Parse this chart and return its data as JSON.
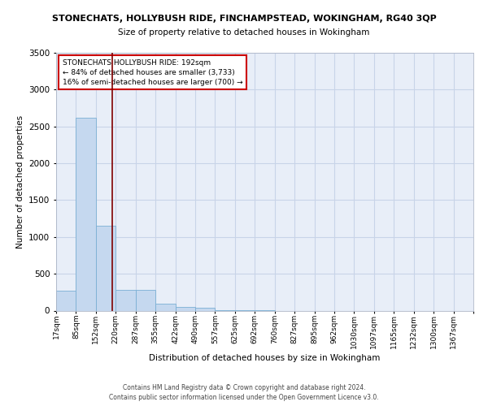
{
  "title1": "STONECHATS, HOLLYBUSH RIDE, FINCHAMPSTEAD, WOKINGHAM, RG40 3QP",
  "title2": "Size of property relative to detached houses in Wokingham",
  "xlabel": "Distribution of detached houses by size in Wokingham",
  "ylabel": "Number of detached properties",
  "bin_labels": [
    "17sqm",
    "85sqm",
    "152sqm",
    "220sqm",
    "287sqm",
    "355sqm",
    "422sqm",
    "490sqm",
    "557sqm",
    "625sqm",
    "692sqm",
    "760sqm",
    "827sqm",
    "895sqm",
    "962sqm",
    "1030sqm",
    "1097sqm",
    "1165sqm",
    "1232sqm",
    "1300sqm",
    "1367sqm"
  ],
  "bar_heights": [
    270,
    2620,
    1150,
    280,
    280,
    95,
    55,
    35,
    5,
    2,
    1,
    0,
    0,
    0,
    0,
    0,
    0,
    0,
    0,
    0,
    0
  ],
  "bar_color": "#c5d8ef",
  "bar_edge_color": "#7aafd4",
  "grid_color": "#c8d4e8",
  "background_color": "#e8eef8",
  "red_line_x": 2.33,
  "annotation_title": "STONECHATS HOLLYBUSH RIDE: 192sqm",
  "annotation_line1": "← 84% of detached houses are smaller (3,733)",
  "annotation_line2": "16% of semi-detached houses are larger (700) →",
  "annotation_box_color": "#cc0000",
  "ylim": [
    0,
    3500
  ],
  "yticks": [
    0,
    500,
    1000,
    1500,
    2000,
    2500,
    3000,
    3500
  ],
  "footer1": "Contains HM Land Registry data © Crown copyright and database right 2024.",
  "footer2": "Contains public sector information licensed under the Open Government Licence v3.0."
}
